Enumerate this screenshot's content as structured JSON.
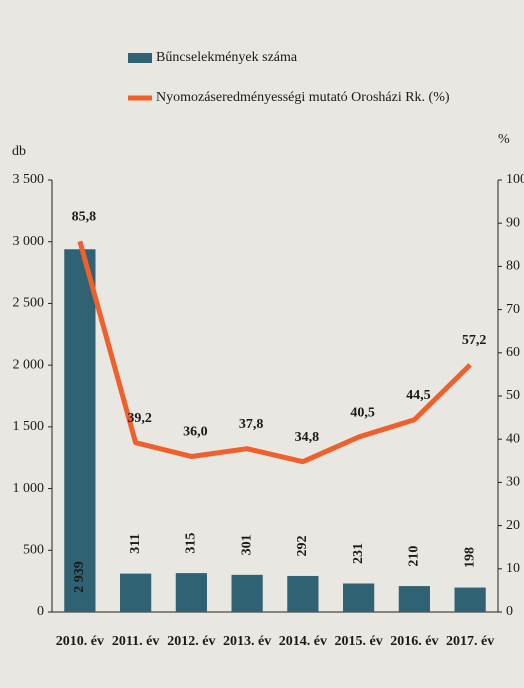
{
  "chart_data": {
    "type": "bar",
    "ylabel": "db",
    "y2label": "%",
    "categories": [
      "2010. év",
      "2011. év",
      "2012. év",
      "2013. év",
      "2014. év",
      "2015. év",
      "2016. év",
      "2017. év"
    ],
    "series": [
      {
        "name": "Bűncselekmények száma",
        "type": "bar",
        "color": "#2f6272",
        "values": [
          2939,
          311,
          315,
          301,
          292,
          231,
          210,
          198
        ],
        "value_labels": [
          "2 939",
          "311",
          "315",
          "301",
          "292",
          "231",
          "210",
          "198"
        ]
      },
      {
        "name": "Nyomozáseredményességi mutató Orosházi Rk. (%)",
        "type": "line",
        "axis": "y2",
        "color": "#f0602c",
        "values": [
          85.8,
          39.2,
          36.0,
          37.8,
          34.8,
          40.5,
          44.5,
          57.2
        ],
        "value_labels": [
          "85,8",
          "39,2",
          "36,0",
          "37,8",
          "34,8",
          "40,5",
          "44,5",
          "57,2"
        ]
      }
    ],
    "ylim": [
      0,
      3500
    ],
    "yticks": [
      0,
      500,
      {
        "value": 1000,
        "label": "1 000"
      },
      {
        "value": 1500,
        "label": "1 500"
      },
      {
        "value": 2000,
        "label": "2 000"
      },
      {
        "value": 2500,
        "label": "2 500"
      },
      {
        "value": 3000,
        "label": "3 000"
      },
      {
        "value": 3500,
        "label": "3 500"
      }
    ],
    "y2lim": [
      0,
      100
    ],
    "y2ticks": [
      0,
      10,
      20,
      30,
      40,
      50,
      60,
      70,
      80,
      90,
      100
    ]
  }
}
